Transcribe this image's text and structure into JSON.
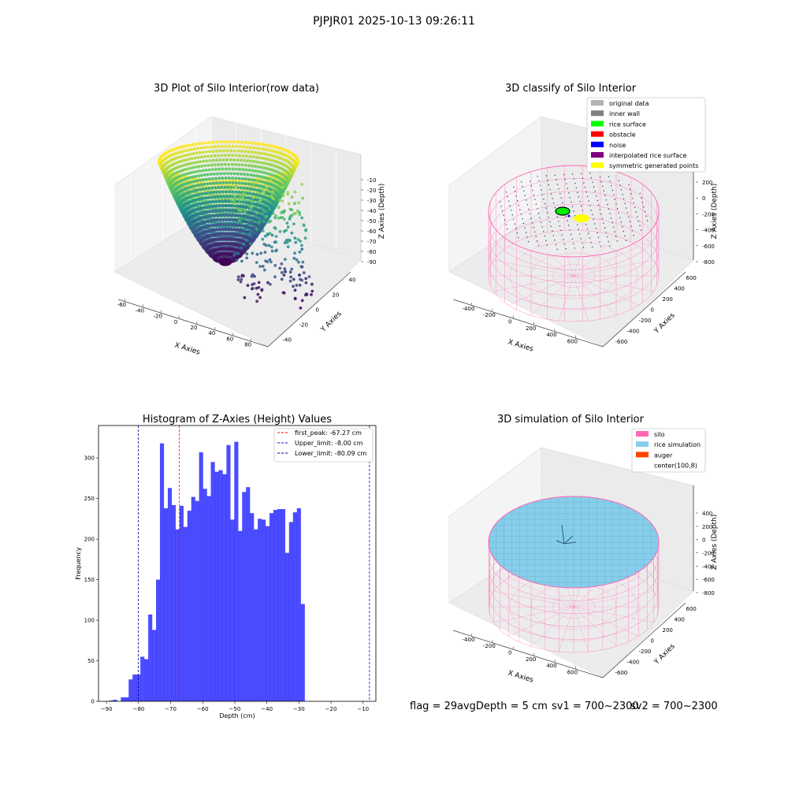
{
  "suptitle": "PJPJR01 2025-10-13 09:26:11",
  "footer": {
    "flag": "flag = 29",
    "avg": "avgDepth = 5 cm",
    "sv1": "sv1 = 700~2300",
    "sv2": "sv2 = 700~2300"
  },
  "chart_data": [
    {
      "type": "scatter",
      "title": "3D Plot of Silo Interior(row data)",
      "xlabel": "X Axies",
      "ylabel": "Y Axies",
      "zlabel": "Z Axies (Depth)",
      "xticks": [
        "-60",
        "-40",
        "-20",
        "0",
        "20",
        "40",
        "60",
        "80"
      ],
      "yticks": [
        "-40",
        "-20",
        "0",
        "20",
        "40"
      ],
      "zticks": [
        "-10",
        "-20",
        "-30",
        "-40",
        "-50",
        "-60",
        "-70",
        "-80",
        "-90"
      ],
      "xlim": [
        -65,
        85
      ],
      "ylim": [
        -50,
        50
      ],
      "zlim": [
        -92,
        -5
      ],
      "colormap": "viridis"
    },
    {
      "type": "scatter",
      "title": "3D classify of Silo Interior",
      "xlabel": "X Axies",
      "ylabel": "Y Axies",
      "zlabel": "Z Axies (Depth)",
      "xticks": [
        "-400",
        "-200",
        "0",
        "200",
        "400",
        "600"
      ],
      "yticks": [
        "-600",
        "-400",
        "-200",
        "0",
        "200",
        "400",
        "600"
      ],
      "zticks": [
        "200",
        "0",
        "-200",
        "-400",
        "-600",
        "-800"
      ],
      "legend": [
        {
          "label": "original data",
          "color": "#b3b3b3"
        },
        {
          "label": "inner wall",
          "color": "#808080"
        },
        {
          "label": "rice surface",
          "color": "#00ff00"
        },
        {
          "label": "obstacle",
          "color": "#ff0000"
        },
        {
          "label": "noise",
          "color": "#0000ff"
        },
        {
          "label": "interpolated rice surface",
          "color": "#800080"
        },
        {
          "label": "symmetric generated points",
          "color": "#ffff00"
        }
      ]
    },
    {
      "type": "bar",
      "title": "Histogram of Z-Axies (Height) Values",
      "xlabel": "Depth (cm)",
      "ylabel": "Frequency",
      "xlim": [
        -92.5,
        -6
      ],
      "ylim": [
        0,
        340
      ],
      "xticks": [
        -90,
        -80,
        -70,
        -60,
        -50,
        -40,
        -30,
        -20,
        -10
      ],
      "yticks": [
        0,
        50,
        100,
        150,
        200,
        250,
        300
      ],
      "bin_start": -89.2,
      "bin_width": 1.22,
      "values": [
        1,
        2,
        0,
        5,
        5,
        27,
        33,
        33,
        55,
        52,
        107,
        88,
        150,
        318,
        238,
        263,
        242,
        212,
        241,
        215,
        235,
        252,
        247,
        307,
        262,
        253,
        295,
        283,
        285,
        280,
        316,
        224,
        320,
        210,
        258,
        264,
        232,
        212,
        225,
        224,
        216,
        232,
        236,
        237,
        237,
        183,
        221,
        233,
        238,
        120
      ],
      "bar_color": "#0000ff",
      "lines": [
        {
          "label": "first_peak: -67.27 cm",
          "x": -67.27,
          "color": "#ff0000"
        },
        {
          "label": "Upper_limit: -8.00 cm",
          "x": -8.0,
          "color": "#0000ff"
        },
        {
          "label": "Lower_limit: -80.09 cm",
          "x": -80.09,
          "color": "#00008b"
        }
      ]
    },
    {
      "type": "scatter",
      "title": "3D simulation of Silo Interior",
      "xlabel": "X Axies",
      "ylabel": "Y Axies",
      "zlabel": "Z Axies (Depth)",
      "xticks": [
        "-400",
        "-200",
        "0",
        "200",
        "400",
        "600"
      ],
      "yticks": [
        "-600",
        "-400",
        "-200",
        "0",
        "200",
        "400",
        "600"
      ],
      "zticks": [
        "400",
        "200",
        "0",
        "-200",
        "-400",
        "-600",
        "-800"
      ],
      "legend": [
        {
          "label": "silo",
          "color": "#ff69b4"
        },
        {
          "label": "rice simulation",
          "color": "#87ceeb"
        },
        {
          "label": "auger",
          "color": "#ff4500"
        },
        {
          "label": "center(100,8)",
          "color": ""
        }
      ]
    }
  ]
}
